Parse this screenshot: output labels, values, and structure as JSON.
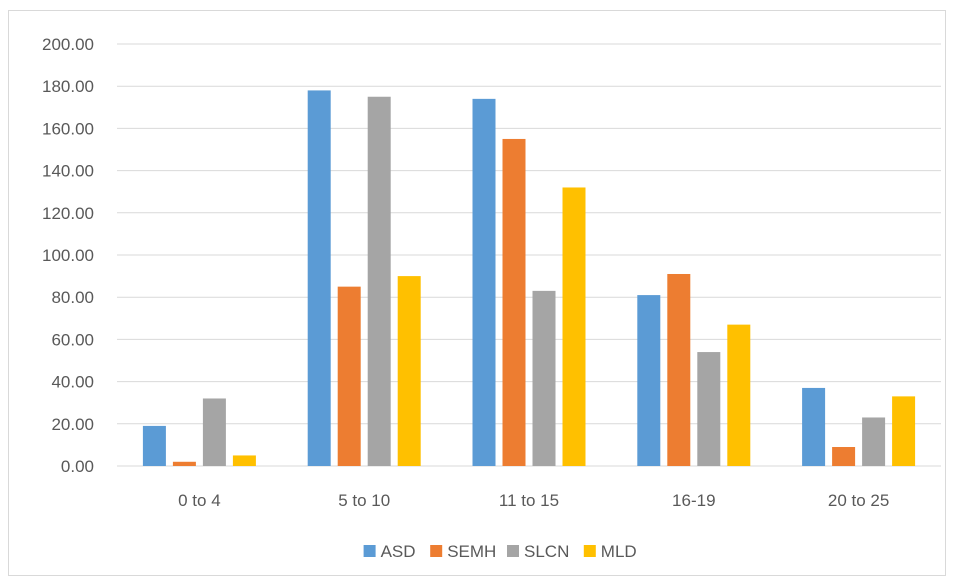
{
  "chart_data": {
    "type": "bar",
    "title": "",
    "xlabel": "",
    "ylabel": "",
    "categories": [
      "0 to 4",
      "5 to 10",
      "11 to 15",
      "16-19",
      "20 to 25"
    ],
    "series": [
      {
        "name": "ASD",
        "color": "#5b9bd5",
        "values": [
          19,
          178,
          174,
          81,
          37
        ]
      },
      {
        "name": "SEMH",
        "color": "#ed7d31",
        "values": [
          2,
          85,
          155,
          91,
          9
        ]
      },
      {
        "name": "SLCN",
        "color": "#a5a5a5",
        "values": [
          32,
          175,
          83,
          54,
          23
        ]
      },
      {
        "name": "MLD",
        "color": "#ffc000",
        "values": [
          5,
          90,
          132,
          67,
          33
        ]
      }
    ],
    "ylim": [
      0,
      200
    ],
    "yticks": [
      "0.00",
      "20.00",
      "40.00",
      "60.00",
      "80.00",
      "100.00",
      "120.00",
      "140.00",
      "160.00",
      "180.00",
      "200.00"
    ],
    "grid": true,
    "legend": "bottom"
  }
}
